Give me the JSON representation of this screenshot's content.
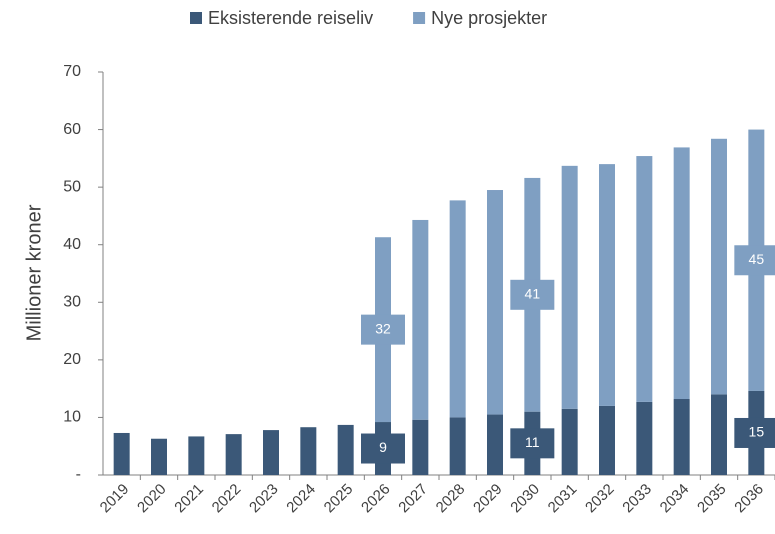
{
  "chart_data": {
    "type": "stacked_bar",
    "y_label": "Millioner kroner",
    "categories": [
      "2019",
      "2020",
      "2021",
      "2022",
      "2023",
      "2024",
      "2025",
      "2026",
      "2027",
      "2028",
      "2029",
      "2030",
      "2031",
      "2032",
      "2033",
      "2034",
      "2035",
      "2036"
    ],
    "series": [
      {
        "name": "Eksisterende reiseliv",
        "color": "#3b5878",
        "values": [
          7.3,
          6.3,
          6.7,
          7.1,
          7.8,
          8.3,
          8.7,
          9.2,
          9.6,
          10.0,
          10.5,
          11.0,
          11.5,
          12.0,
          12.7,
          13.2,
          14.0,
          14.6
        ],
        "value_labels": [
          null,
          null,
          null,
          null,
          null,
          null,
          null,
          "9",
          null,
          null,
          null,
          "11",
          null,
          null,
          null,
          null,
          null,
          "15"
        ]
      },
      {
        "name": "Nye prosjekter",
        "color": "#7f9fc2",
        "values": [
          null,
          null,
          null,
          null,
          null,
          null,
          null,
          32.1,
          34.7,
          37.7,
          39.0,
          40.6,
          42.2,
          42.0,
          42.7,
          43.7,
          44.4,
          45.4
        ],
        "value_labels": [
          null,
          null,
          null,
          null,
          null,
          null,
          null,
          "32",
          null,
          null,
          null,
          "41",
          null,
          null,
          null,
          null,
          null,
          "45"
        ]
      }
    ],
    "ylim": [
      0,
      70
    ],
    "yticks": [
      {
        "value": 0,
        "label": "-"
      },
      10,
      20,
      30,
      40,
      50,
      60,
      70
    ],
    "legend": "top"
  }
}
